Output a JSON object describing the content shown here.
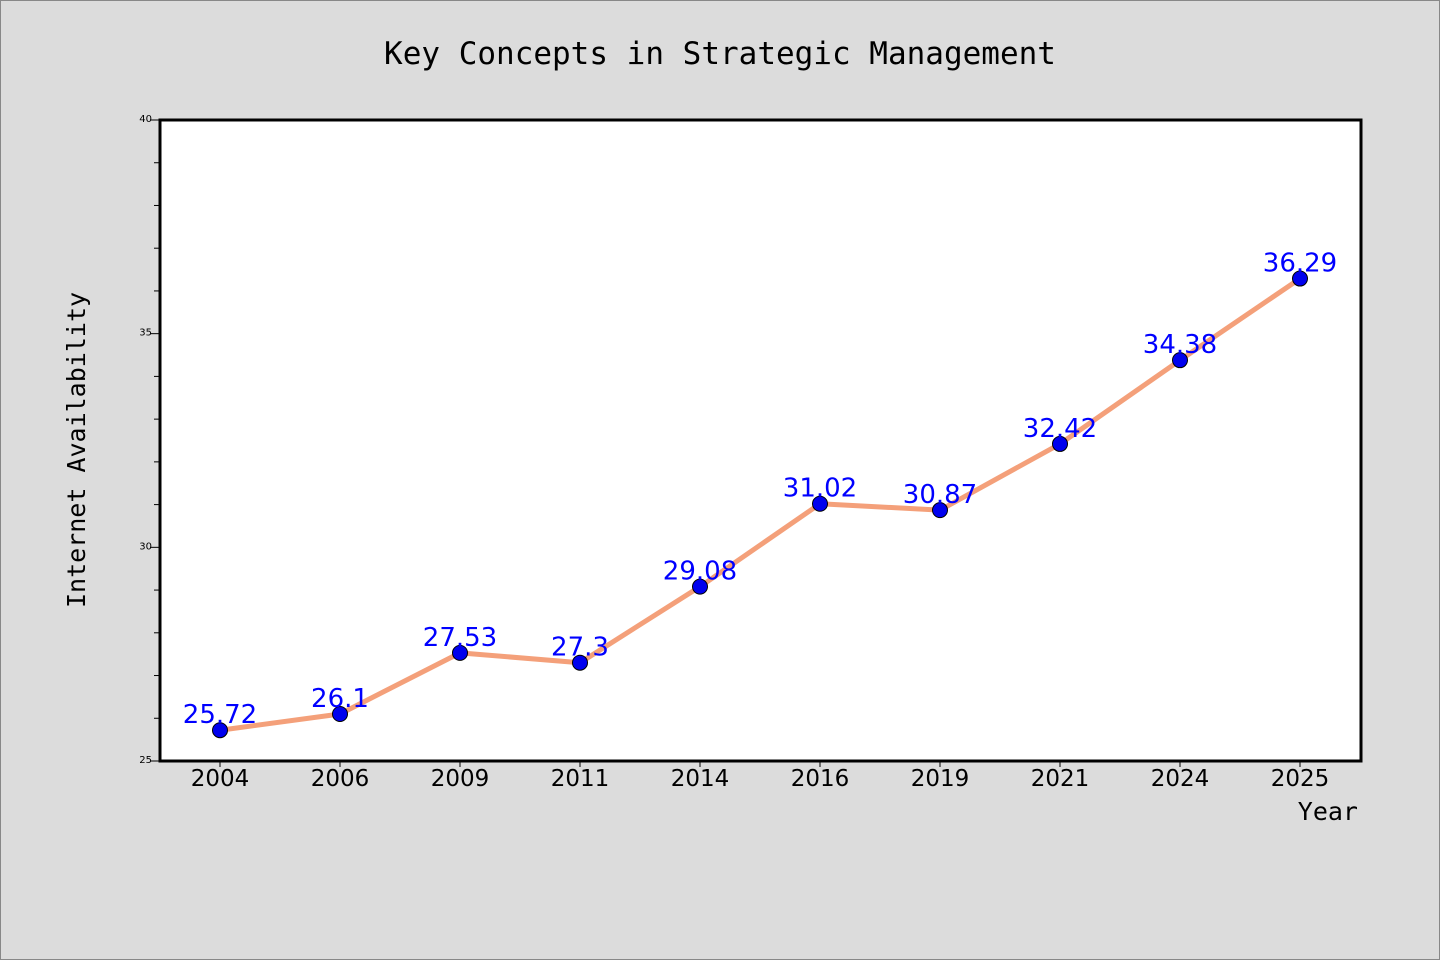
{
  "chart_data": {
    "type": "line",
    "title": "Key Concepts in Strategic Management",
    "xlabel": "Year",
    "ylabel": "Internet Availability",
    "categories": [
      "2004",
      "2006",
      "2009",
      "2011",
      "2014",
      "2016",
      "2019",
      "2021",
      "2024",
      "2025"
    ],
    "series": [
      {
        "values": [
          25.72,
          26.1,
          27.53,
          27.3,
          29.08,
          31.02,
          30.87,
          32.42,
          34.38,
          36.29
        ]
      }
    ],
    "ylim": [
      25,
      40
    ],
    "yticks": [
      25,
      30,
      35,
      40
    ],
    "yminor_step": 1,
    "grid": false,
    "legend": "none",
    "data_labels": true,
    "colors": {
      "background": "#dcdcdc",
      "plot_background": "#ffffff",
      "line": "#f4a07a",
      "marker": "#0000ee",
      "label": "#0000ff"
    }
  }
}
